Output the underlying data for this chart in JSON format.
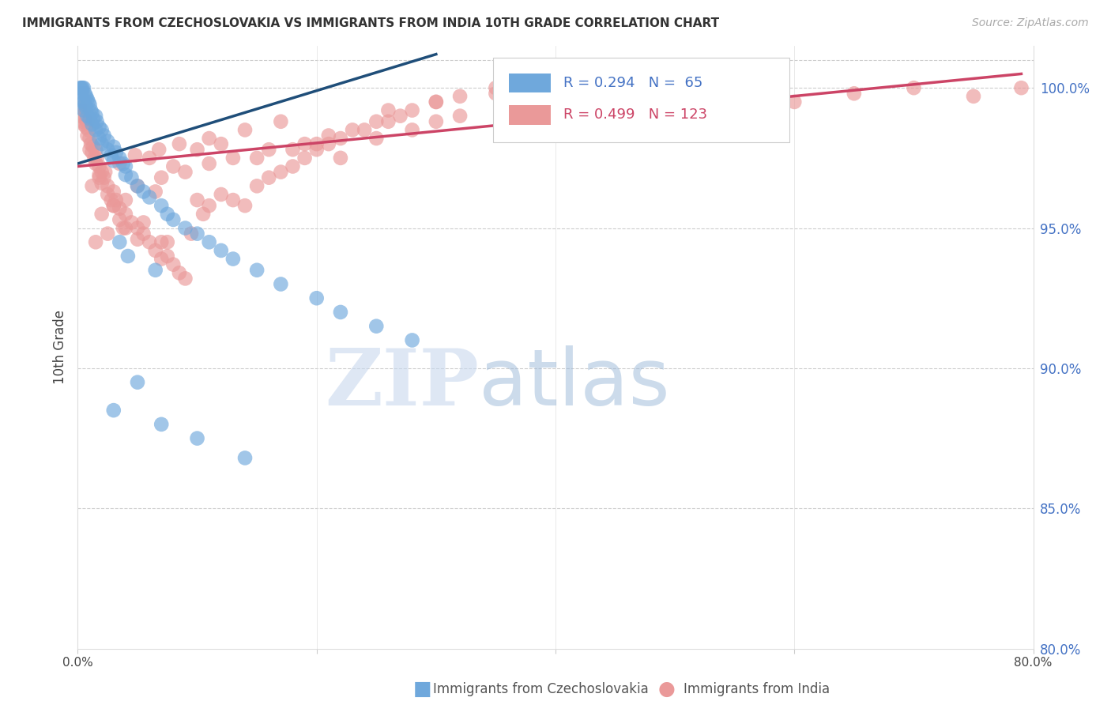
{
  "title": "IMMIGRANTS FROM CZECHOSLOVAKIA VS IMMIGRANTS FROM INDIA 10TH GRADE CORRELATION CHART",
  "source": "Source: ZipAtlas.com",
  "ylabel": "10th Grade",
  "color_czech": "#6fa8dc",
  "color_india": "#ea9999",
  "trendline_czech": "#1f4e79",
  "trendline_india": "#cc4466",
  "background_color": "#ffffff",
  "xlim": [
    0.0,
    80.0
  ],
  "ylim": [
    80.0,
    101.5
  ],
  "czech_x": [
    0.2,
    0.3,
    0.3,
    0.4,
    0.4,
    0.5,
    0.5,
    0.5,
    0.6,
    0.6,
    0.7,
    0.7,
    0.8,
    0.8,
    0.9,
    1.0,
    1.0,
    1.1,
    1.2,
    1.2,
    1.3,
    1.5,
    1.5,
    1.6,
    1.8,
    1.8,
    2.0,
    2.0,
    2.2,
    2.5,
    2.5,
    2.8,
    3.0,
    3.0,
    3.2,
    3.5,
    3.8,
    4.0,
    4.0,
    4.5,
    5.0,
    5.5,
    6.0,
    7.0,
    7.5,
    8.0,
    9.0,
    10.0,
    11.0,
    12.0,
    13.0,
    15.0,
    17.0,
    20.0,
    22.0,
    25.0,
    28.0,
    3.0,
    5.0,
    7.0,
    10.0,
    14.0,
    3.5,
    4.2,
    6.5
  ],
  "czech_y": [
    100.0,
    100.0,
    99.8,
    100.0,
    99.6,
    100.0,
    99.5,
    99.2,
    99.8,
    99.4,
    99.7,
    99.3,
    99.6,
    99.0,
    99.5,
    99.4,
    98.9,
    99.2,
    99.1,
    98.7,
    98.9,
    99.0,
    98.5,
    98.8,
    98.6,
    98.2,
    98.5,
    98.0,
    98.3,
    98.1,
    97.8,
    97.6,
    97.9,
    97.4,
    97.7,
    97.5,
    97.3,
    97.2,
    96.9,
    96.8,
    96.5,
    96.3,
    96.1,
    95.8,
    95.5,
    95.3,
    95.0,
    94.8,
    94.5,
    94.2,
    93.9,
    93.5,
    93.0,
    92.5,
    92.0,
    91.5,
    91.0,
    88.5,
    89.5,
    88.0,
    87.5,
    86.8,
    94.5,
    94.0,
    93.5
  ],
  "india_x": [
    0.2,
    0.3,
    0.4,
    0.5,
    0.5,
    0.6,
    0.7,
    0.8,
    0.8,
    0.9,
    1.0,
    1.0,
    1.1,
    1.2,
    1.3,
    1.4,
    1.5,
    1.5,
    1.6,
    1.8,
    1.8,
    2.0,
    2.0,
    2.2,
    2.5,
    2.5,
    2.8,
    3.0,
    3.0,
    3.2,
    3.5,
    3.5,
    4.0,
    4.0,
    4.5,
    5.0,
    5.0,
    5.5,
    6.0,
    6.5,
    7.0,
    7.0,
    7.5,
    8.0,
    8.5,
    9.0,
    10.0,
    10.5,
    11.0,
    12.0,
    13.0,
    14.0,
    15.0,
    16.0,
    17.0,
    18.0,
    19.0,
    20.0,
    21.0,
    22.0,
    24.0,
    25.0,
    27.0,
    28.0,
    30.0,
    32.0,
    35.0,
    37.0,
    40.0,
    43.0,
    46.0,
    50.0,
    55.0,
    60.0,
    65.0,
    70.0,
    75.0,
    79.0,
    6.0,
    8.0,
    10.0,
    12.0,
    15.0,
    18.0,
    20.0,
    22.0,
    25.0,
    28.0,
    30.0,
    32.0,
    5.0,
    7.0,
    9.0,
    11.0,
    13.0,
    16.0,
    19.0,
    21.0,
    23.0,
    26.0,
    2.0,
    3.0,
    4.0,
    6.5,
    1.5,
    2.5,
    3.8,
    5.5,
    7.5,
    9.5,
    1.2,
    1.8,
    2.3,
    3.5,
    4.8,
    6.8,
    8.5,
    11.0,
    14.0,
    17.0,
    26.0,
    30.0,
    35.0
  ],
  "india_y": [
    99.3,
    99.0,
    98.8,
    99.2,
    98.7,
    98.9,
    98.6,
    98.8,
    98.3,
    98.5,
    98.2,
    97.8,
    98.0,
    97.7,
    97.9,
    97.5,
    97.8,
    97.3,
    97.5,
    97.2,
    96.9,
    97.0,
    96.6,
    96.8,
    96.5,
    96.2,
    96.0,
    96.3,
    95.8,
    96.0,
    95.7,
    95.3,
    95.5,
    95.0,
    95.2,
    95.0,
    94.6,
    94.8,
    94.5,
    94.2,
    94.5,
    93.9,
    94.0,
    93.7,
    93.4,
    93.2,
    96.0,
    95.5,
    95.8,
    96.2,
    96.0,
    95.8,
    96.5,
    96.8,
    97.0,
    97.2,
    97.5,
    97.8,
    98.0,
    98.2,
    98.5,
    98.8,
    99.0,
    99.2,
    99.5,
    99.7,
    100.0,
    99.8,
    100.0,
    99.5,
    99.8,
    100.0,
    99.8,
    99.5,
    99.8,
    100.0,
    99.7,
    100.0,
    97.5,
    97.2,
    97.8,
    98.0,
    97.5,
    97.8,
    98.0,
    97.5,
    98.2,
    98.5,
    98.8,
    99.0,
    96.5,
    96.8,
    97.0,
    97.3,
    97.5,
    97.8,
    98.0,
    98.3,
    98.5,
    98.8,
    95.5,
    95.8,
    96.0,
    96.3,
    94.5,
    94.8,
    95.0,
    95.2,
    94.5,
    94.8,
    96.5,
    96.8,
    97.0,
    97.3,
    97.6,
    97.8,
    98.0,
    98.2,
    98.5,
    98.8,
    99.2,
    99.5,
    99.8
  ],
  "czech_trend_x0": 0.0,
  "czech_trend_y0": 97.3,
  "czech_trend_x1": 30.0,
  "czech_trend_y1": 101.2,
  "india_trend_x0": 0.0,
  "india_trend_y0": 97.2,
  "india_trend_x1": 79.0,
  "india_trend_y1": 100.5
}
